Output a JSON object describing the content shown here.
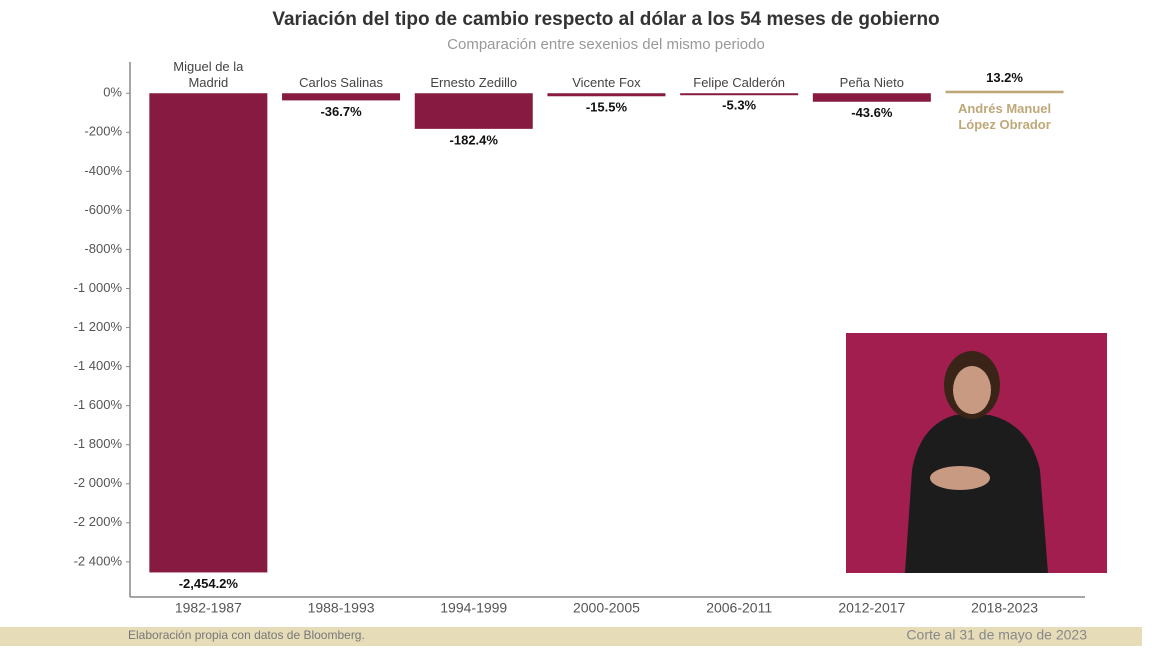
{
  "chart_data": {
    "type": "bar",
    "title": "Variación del tipo de cambio respecto al dólar a los 54 meses de gobierno",
    "subtitle": "Comparación entre sexenios del mismo periodo",
    "categories": [
      "1982-1987",
      "1988-1993",
      "1994-1999",
      "2000-2005",
      "2006-2011",
      "2012-2017",
      "2018-2023"
    ],
    "bar_labels": [
      "Miguel de la Madrid",
      "Carlos Salinas",
      "Ernesto Zedillo",
      "Vicente Fox",
      "Felipe Calderón",
      "Peña Nieto",
      "Andrés Manuel López Obrador"
    ],
    "values": [
      -2454.2,
      -36.7,
      -182.4,
      -15.5,
      -5.3,
      -43.6,
      13.2
    ],
    "value_labels": [
      "-2,454.2%",
      "-36.7%",
      "-182.4%",
      "-15.5%",
      "-5.3%",
      "-43.6%",
      "13.2%"
    ],
    "colors": [
      "#861a41",
      "#861a41",
      "#861a41",
      "#861a41",
      "#861a41",
      "#861a41",
      "#bfa878"
    ],
    "ylim": [
      -2580,
      160
    ],
    "yticks": [
      {
        "value": 0,
        "label": "0%"
      },
      {
        "value": -200,
        "label": "-200%"
      },
      {
        "value": -400,
        "label": "-400%"
      },
      {
        "value": -600,
        "label": "-600%"
      },
      {
        "value": -800,
        "label": "-800%"
      },
      {
        "value": -1000,
        "label": "-1 000%"
      },
      {
        "value": -1200,
        "label": "-1 200%"
      },
      {
        "value": -1400,
        "label": "-1 400%"
      },
      {
        "value": -1600,
        "label": "-1 600%"
      },
      {
        "value": -1800,
        "label": "-1 800%"
      },
      {
        "value": -2000,
        "label": "-2 000%"
      },
      {
        "value": -2200,
        "label": "-2 200%"
      },
      {
        "value": -2400,
        "label": "-2 400%"
      }
    ],
    "grid": false,
    "source": "Elaboración propia con datos de Bloomberg.",
    "note": "Corte al 31 de mayo de 2023"
  }
}
